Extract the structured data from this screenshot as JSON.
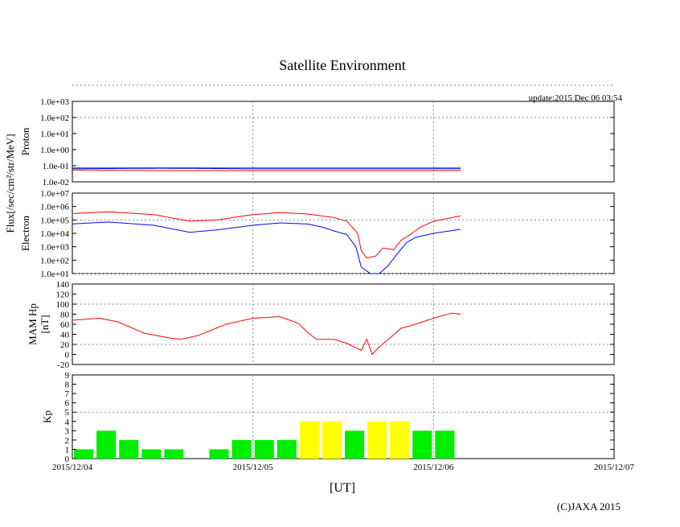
{
  "title": "Satellite Environment",
  "update_text": "update:2015 Dec 06 03:54",
  "copyright": "(C)JAXA 2015",
  "flux_label": "Flux[/sec/cm²/str/MeV]",
  "x_axis": {
    "label": "[UT]",
    "ticks": [
      "2015/12/04",
      "2015/12/05",
      "2015/12/06",
      "2015/12/07"
    ],
    "range_days": [
      0,
      3
    ],
    "data_end_day": 2.15
  },
  "chart_data": [
    {
      "type": "line",
      "panel": "proton",
      "ylabel": "Proton",
      "yscale": "log",
      "ylim_exp": [
        -2,
        3
      ],
      "tick_labels": [
        "1.0e-02",
        "1.0e-01",
        "1.0e+00",
        "1.0e+01",
        "1.0e+02",
        "1.0e+03"
      ],
      "series": [
        {
          "name": "proton-red",
          "color": "#ff0000",
          "x": [
            0,
            0.5,
            1.0,
            1.5,
            2.0,
            2.15
          ],
          "y": [
            0.055,
            0.05,
            0.05,
            0.05,
            0.05,
            0.05
          ]
        },
        {
          "name": "proton-green",
          "color": "#00a060",
          "x": [
            0,
            0.5,
            1.0,
            1.5,
            2.0,
            2.15
          ],
          "y": [
            0.075,
            0.075,
            0.075,
            0.075,
            0.075,
            0.075
          ]
        },
        {
          "name": "proton-blue",
          "color": "#0000ff",
          "x": [
            0,
            0.5,
            1.0,
            1.5,
            2.0,
            2.15
          ],
          "y": [
            0.065,
            0.07,
            0.065,
            0.065,
            0.065,
            0.065
          ]
        }
      ]
    },
    {
      "type": "line",
      "panel": "electron",
      "ylabel": "Electron",
      "yscale": "log",
      "ylim_exp": [
        1,
        7
      ],
      "tick_labels": [
        "1.0e+01",
        "1.0e+02",
        "1.0e+03",
        "1.0e+04",
        "1.0e+05",
        "1.0e+06",
        "1.0e+07"
      ],
      "series": [
        {
          "name": "electron-high",
          "color": "#ff0000",
          "x": [
            0,
            0.2,
            0.45,
            0.65,
            0.8,
            1.0,
            1.15,
            1.3,
            1.38,
            1.45,
            1.52,
            1.58,
            1.6,
            1.63,
            1.68,
            1.72,
            1.78,
            1.82,
            1.87,
            1.93,
            2.0,
            2.15
          ],
          "y": [
            300000,
            400000,
            250000,
            80000,
            100000,
            250000,
            350000,
            280000,
            200000,
            150000,
            80000,
            10000,
            500,
            150,
            200,
            800,
            600,
            3000,
            8000,
            30000,
            80000,
            200000
          ]
        },
        {
          "name": "electron-low",
          "color": "#0000ff",
          "x": [
            0,
            0.2,
            0.45,
            0.65,
            0.8,
            1.0,
            1.15,
            1.3,
            1.38,
            1.45,
            1.52,
            1.57,
            1.6,
            1.65,
            1.7,
            1.75,
            1.8,
            1.85,
            1.9,
            2.0,
            2.15
          ],
          "y": [
            50000,
            70000,
            40000,
            12000,
            18000,
            40000,
            60000,
            50000,
            30000,
            15000,
            8000,
            1000,
            30,
            10,
            10,
            40,
            300,
            2000,
            5000,
            10000,
            20000
          ]
        }
      ]
    },
    {
      "type": "line",
      "panel": "mam-hp",
      "ylabel": "MAM Hp\n[nT]",
      "ylim": [
        -20,
        140
      ],
      "tick_labels": [
        "-20",
        "0",
        "20",
        "40",
        "60",
        "80",
        "100",
        "120",
        "140"
      ],
      "series": [
        {
          "name": "hp",
          "color": "#ff0000",
          "x": [
            0,
            0.15,
            0.25,
            0.4,
            0.55,
            0.6,
            0.7,
            0.85,
            1.0,
            1.15,
            1.25,
            1.3,
            1.35,
            1.45,
            1.52,
            1.6,
            1.63,
            1.66,
            1.7,
            1.75,
            1.82,
            1.9,
            2.0,
            2.1,
            2.15
          ],
          "y": [
            68,
            72,
            65,
            42,
            32,
            30,
            38,
            60,
            72,
            75,
            62,
            45,
            30,
            30,
            22,
            8,
            30,
            0,
            15,
            30,
            52,
            60,
            72,
            82,
            80
          ]
        }
      ]
    },
    {
      "type": "bar",
      "panel": "kp",
      "ylabel": "Kp",
      "ylim": [
        0,
        9
      ],
      "tick_labels": [
        "0",
        "1",
        "2",
        "3",
        "4",
        "5",
        "6",
        "7",
        "8",
        "9"
      ],
      "bin_hours": 3,
      "values": [
        1,
        3,
        2,
        1,
        1,
        0,
        1,
        2,
        2,
        2,
        4,
        4,
        3,
        4,
        4,
        3,
        3
      ],
      "colors": {
        "quiet": "#00ee00",
        "active": "#ffff00"
      }
    }
  ]
}
